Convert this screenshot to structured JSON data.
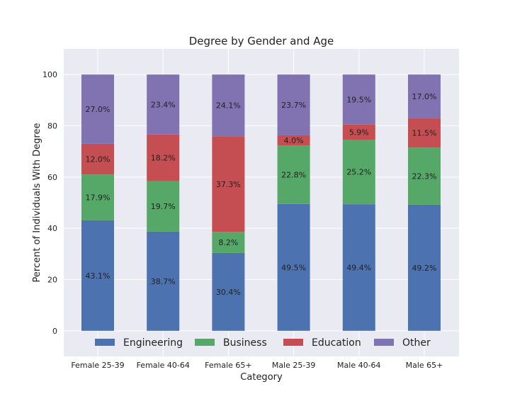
{
  "chart_data": {
    "type": "bar",
    "stacked": true,
    "title": "Degree by Gender and Age",
    "xlabel": "Category",
    "ylabel": "Percent of Individuals With Degree",
    "ylim": [
      -10,
      110
    ],
    "yticks": [
      "0",
      "20",
      "40",
      "60",
      "80",
      "100"
    ],
    "grid": true,
    "legend_position": "bottom",
    "categories": [
      "Female 25-39",
      "Female 40-64",
      "Female 65+",
      "Male 25-39",
      "Male 40-64",
      "Male 65+"
    ],
    "series": [
      {
        "name": "Engineering",
        "color": "#4c72b0",
        "values": [
          43.1,
          38.7,
          30.4,
          49.5,
          49.4,
          49.2
        ],
        "labels": [
          "43.1%",
          "38.7%",
          "30.4%",
          "49.5%",
          "49.4%",
          "49.2%"
        ]
      },
      {
        "name": "Business",
        "color": "#55a868",
        "values": [
          17.9,
          19.7,
          8.2,
          22.8,
          25.2,
          22.3
        ],
        "labels": [
          "17.9%",
          "19.7%",
          "8.2%",
          "22.8%",
          "25.2%",
          "22.3%"
        ]
      },
      {
        "name": "Education",
        "color": "#c44e52",
        "values": [
          12.0,
          18.2,
          37.3,
          4.0,
          5.9,
          11.5
        ],
        "labels": [
          "12.0%",
          "18.2%",
          "37.3%",
          "4.0%",
          "5.9%",
          "11.5%"
        ]
      },
      {
        "name": "Other",
        "color": "#8172b2",
        "values": [
          27.0,
          23.4,
          24.1,
          23.7,
          19.5,
          17.0
        ],
        "labels": [
          "27.0%",
          "23.4%",
          "24.1%",
          "23.7%",
          "19.5%",
          "17.0%"
        ]
      }
    ]
  }
}
